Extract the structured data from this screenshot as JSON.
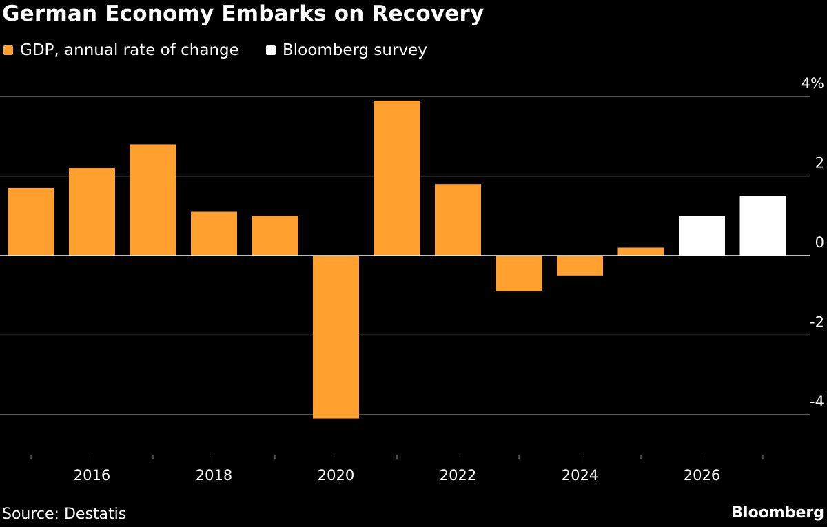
{
  "chart_data": {
    "type": "bar",
    "title": "German Economy Embarks on Recovery",
    "source": "Source: Destatis",
    "brand": "Bloomberg",
    "categories": [
      2015,
      2016,
      2017,
      2018,
      2019,
      2020,
      2021,
      2022,
      2023,
      2024,
      2025,
      2026,
      2027
    ],
    "series": [
      {
        "name": "GDP, annual rate of change",
        "color": "#FFA02F",
        "values": [
          1.7,
          2.2,
          2.8,
          1.1,
          1.0,
          -4.1,
          3.9,
          1.8,
          -0.9,
          -0.5,
          0.2,
          null,
          null
        ]
      },
      {
        "name": "Bloomberg survey",
        "color": "#FFFFFF",
        "values": [
          null,
          null,
          null,
          null,
          null,
          null,
          null,
          null,
          null,
          null,
          null,
          1.0,
          1.5
        ]
      }
    ],
    "x_tick_labels": [
      "2016",
      "2018",
      "2020",
      "2022",
      "2024",
      "2026"
    ],
    "y_ticks": [
      {
        "value": 4,
        "label": "4%"
      },
      {
        "value": 2,
        "label": "2"
      },
      {
        "value": 0,
        "label": "0"
      },
      {
        "value": -2,
        "label": "-2"
      },
      {
        "value": -4,
        "label": "-4"
      }
    ],
    "ylim": [
      -5,
      4.5
    ],
    "grid": true,
    "legend_position": "top-left",
    "background": "#000000"
  }
}
